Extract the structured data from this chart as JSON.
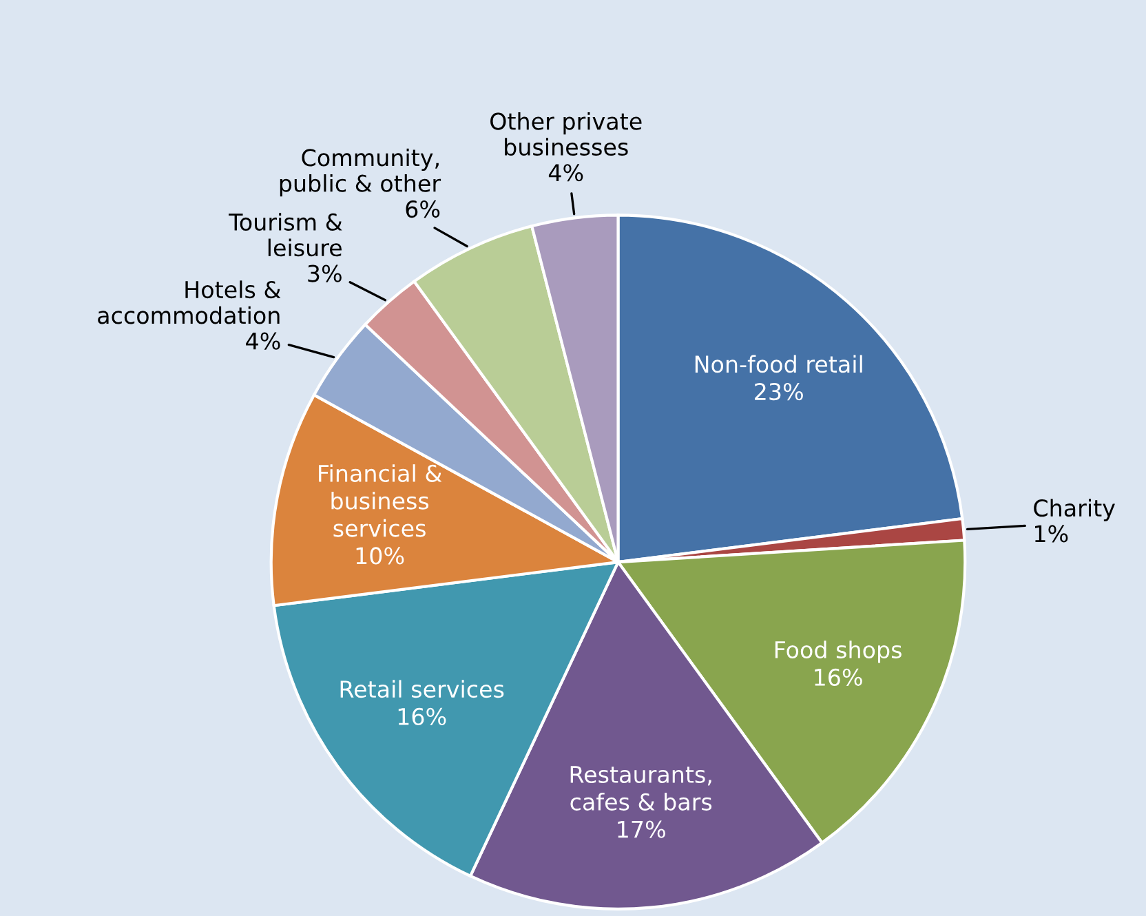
{
  "chart_data": {
    "type": "pie",
    "categories": [
      "Non-food retail",
      "Charity",
      "Food shops",
      "Restaurants,\ncafes & bars",
      "Retail services",
      "Financial &\nbusiness\nservices",
      "Hotels &\naccommodation",
      "Tourism &\nleisure",
      "Community,\npublic & other",
      "Other private\nbusinesses"
    ],
    "values": [
      23,
      1,
      16,
      17,
      16,
      10,
      4,
      3,
      6,
      4
    ],
    "value_labels": [
      "23%",
      "1%",
      "16%",
      "17%",
      "16%",
      "10%",
      "4%",
      "3%",
      "6%",
      "4%"
    ],
    "colors": [
      "#4572a7",
      "#aa4643",
      "#89a54e",
      "#71588f",
      "#4198af",
      "#db843d",
      "#93a9cf",
      "#d19392",
      "#b9cd96",
      "#a99bbd"
    ]
  }
}
